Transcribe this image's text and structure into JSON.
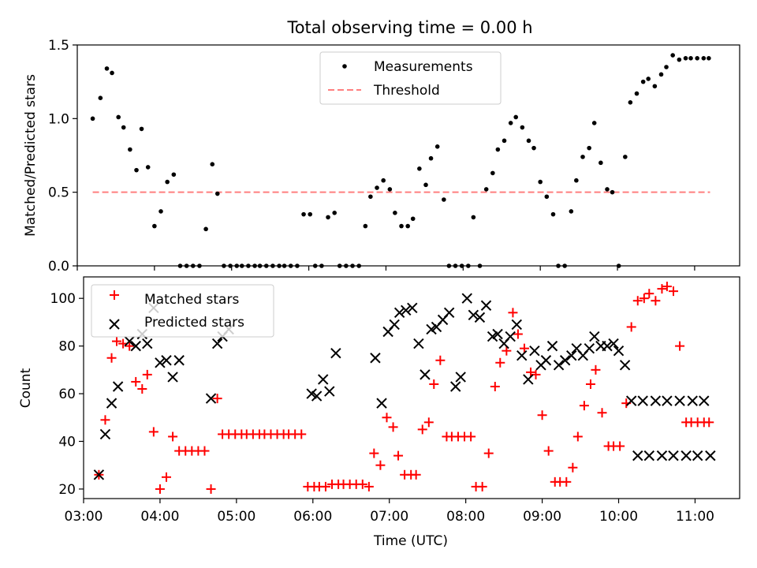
{
  "figure_title": "Total observing time = 0.00 h",
  "chart_data": [
    {
      "type": "scatter",
      "ylabel": "Matched/Predicted stars",
      "xlabel": "",
      "xlim": [
        "03:00",
        "11:35"
      ],
      "ylim": [
        0,
        1.5
      ],
      "yticks": [
        "0.0",
        "0.5",
        "1.0",
        "1.5"
      ],
      "legend_position": "top-center",
      "threshold": 0.5,
      "threshold_range": [
        "03:12",
        "11:12"
      ],
      "series": [
        {
          "name": "Measurements",
          "color": "#000000",
          "marker": "dot",
          "x": [
            "03:12",
            "03:18",
            "03:23",
            "03:27",
            "03:32",
            "03:36",
            "03:41",
            "03:46",
            "03:50",
            "03:55",
            "04:00",
            "04:05",
            "04:10",
            "04:15",
            "04:20",
            "04:25",
            "04:30",
            "04:35",
            "04:40",
            "04:45",
            "04:49",
            "04:54",
            "04:59",
            "05:04",
            "05:08",
            "05:13",
            "05:18",
            "05:22",
            "05:27",
            "05:32",
            "05:37",
            "05:41",
            "05:46",
            "05:51",
            "05:56",
            "06:01",
            "06:05",
            "06:10",
            "06:15",
            "06:20",
            "06:24",
            "06:29",
            "06:34",
            "06:39",
            "06:44",
            "06:48",
            "06:53",
            "06:58",
            "07:03",
            "07:07",
            "07:12",
            "07:17",
            "07:21",
            "07:26",
            "07:31",
            "07:35",
            "07:40",
            "07:45",
            "07:49",
            "07:54",
            "07:59",
            "08:04",
            "08:08",
            "08:13",
            "08:18",
            "08:23",
            "08:27",
            "08:32",
            "08:37",
            "08:41",
            "08:46",
            "08:51",
            "08:55",
            "09:00",
            "09:05",
            "09:10",
            "09:14",
            "09:19",
            "09:24",
            "09:28",
            "09:33",
            "09:38",
            "09:42",
            "09:47",
            "09:52",
            "09:56",
            "10:01",
            "10:06",
            "10:10",
            "10:15",
            "10:20",
            "10:24",
            "10:29",
            "10:34",
            "10:38",
            "10:43",
            "10:48",
            "10:53",
            "10:57",
            "11:02",
            "11:07",
            "11:11"
          ],
          "y": [
            1.0,
            1.14,
            1.34,
            1.31,
            1.01,
            0.94,
            0.79,
            0.65,
            0.93,
            0.67,
            0.27,
            0.37,
            0.57,
            0.62,
            0.0,
            0.0,
            0.0,
            0.0,
            0.25,
            0.69,
            0.49,
            0.0,
            0.0,
            0.0,
            0.0,
            0.0,
            0.0,
            0.0,
            0.0,
            0.0,
            0.0,
            0.0,
            0.0,
            0.0,
            0.35,
            0.35,
            0.0,
            0.0,
            0.33,
            0.36,
            0.0,
            0.0,
            0.0,
            0.0,
            0.27,
            0.47,
            0.53,
            0.58,
            0.52,
            0.36,
            0.27,
            0.27,
            0.32,
            0.66,
            0.55,
            0.73,
            0.81,
            0.45,
            0.0,
            0.0,
            0.0,
            0.0,
            0.33,
            0.0,
            0.52,
            0.63,
            0.79,
            0.85,
            0.97,
            1.01,
            0.94,
            0.85,
            0.8,
            0.57,
            0.47,
            0.35,
            0.0,
            0.0,
            0.37,
            0.58,
            0.74,
            0.8,
            0.97,
            0.7,
            0.52,
            0.5,
            0.0,
            0.74,
            1.11,
            1.17,
            1.25,
            1.27,
            1.22,
            1.3,
            1.35,
            1.43,
            1.4,
            1.41,
            1.41,
            1.41,
            1.41,
            1.41
          ]
        },
        {
          "name": "Threshold",
          "color": "#ff7f7f",
          "style": "dashed",
          "x": [
            "03:12",
            "11:12"
          ],
          "y": [
            0.5,
            0.5
          ]
        }
      ]
    },
    {
      "type": "scatter",
      "ylabel": "Count",
      "xlabel": "Time (UTC)",
      "xlim": [
        "03:00",
        "11:35"
      ],
      "ylim": [
        16,
        109
      ],
      "yticks": [
        "20",
        "40",
        "60",
        "80",
        "100"
      ],
      "xticks": [
        "03:00",
        "04:00",
        "05:00",
        "06:00",
        "07:00",
        "08:00",
        "09:00",
        "10:00",
        "11:00"
      ],
      "legend_position": "top-left",
      "series": [
        {
          "name": "Matched stars",
          "color": "#ff0000",
          "marker": "plus",
          "x": [
            "03:12",
            "03:17",
            "03:22",
            "03:26",
            "03:31",
            "03:36",
            "03:41",
            "03:46",
            "03:50",
            "03:55",
            "04:00",
            "04:05",
            "04:10",
            "04:15",
            "04:20",
            "04:25",
            "04:30",
            "04:35",
            "04:40",
            "04:45",
            "04:49",
            "04:54",
            "04:59",
            "05:04",
            "05:08",
            "05:13",
            "05:18",
            "05:22",
            "05:27",
            "05:32",
            "05:37",
            "05:41",
            "05:46",
            "05:51",
            "05:56",
            "06:01",
            "06:05",
            "06:10",
            "06:15",
            "06:20",
            "06:24",
            "06:29",
            "06:34",
            "06:39",
            "06:44",
            "06:48",
            "06:53",
            "06:58",
            "07:03",
            "07:07",
            "07:12",
            "07:17",
            "07:21",
            "07:26",
            "07:31",
            "07:35",
            "07:40",
            "07:45",
            "07:49",
            "07:54",
            "07:59",
            "08:04",
            "08:08",
            "08:13",
            "08:18",
            "08:23",
            "08:27",
            "08:32",
            "08:37",
            "08:41",
            "08:46",
            "08:51",
            "08:55",
            "09:00",
            "09:05",
            "09:10",
            "09:14",
            "09:19",
            "09:24",
            "09:28",
            "09:33",
            "09:38",
            "09:42",
            "09:47",
            "09:52",
            "09:56",
            "10:01",
            "10:06",
            "10:10",
            "10:15",
            "10:20",
            "10:24",
            "10:29",
            "10:34",
            "10:38",
            "10:43",
            "10:48",
            "10:53",
            "10:57",
            "11:02",
            "11:07",
            "11:11"
          ],
          "y": [
            26,
            49,
            75,
            82,
            81,
            80,
            65,
            62,
            68,
            44,
            20,
            25,
            42,
            36,
            36,
            36,
            36,
            36,
            20,
            58,
            43,
            43,
            43,
            43,
            43,
            43,
            43,
            43,
            43,
            43,
            43,
            43,
            43,
            43,
            21,
            21,
            21,
            21,
            22,
            22,
            22,
            22,
            22,
            22,
            21,
            35,
            30,
            50,
            46,
            34,
            26,
            26,
            26,
            45,
            48,
            64,
            74,
            42,
            42,
            42,
            42,
            42,
            21,
            21,
            35,
            63,
            73,
            78,
            94,
            85,
            79,
            69,
            68,
            51,
            36,
            23,
            23,
            23,
            29,
            42,
            55,
            64,
            70,
            52,
            38,
            38,
            38,
            56,
            88,
            99,
            100,
            102,
            99,
            104,
            105,
            103,
            80,
            48,
            48,
            48,
            48,
            48
          ]
        },
        {
          "name": "Predicted stars",
          "color": "#000000",
          "marker": "x",
          "x": [
            "03:12",
            "03:17",
            "03:22",
            "03:27",
            "03:36",
            "03:41",
            "03:46",
            "03:50",
            "03:55",
            "04:00",
            "04:05",
            "04:10",
            "04:15",
            "04:40",
            "04:45",
            "04:49",
            "04:54",
            "05:59",
            "06:03",
            "06:08",
            "06:13",
            "06:18",
            "06:49",
            "06:54",
            "06:59",
            "07:04",
            "07:08",
            "07:13",
            "07:18",
            "07:23",
            "07:28",
            "07:33",
            "07:37",
            "07:42",
            "07:47",
            "07:52",
            "07:56",
            "08:01",
            "08:06",
            "08:11",
            "08:16",
            "08:21",
            "08:25",
            "08:30",
            "08:35",
            "08:40",
            "08:44",
            "08:49",
            "08:54",
            "08:59",
            "09:03",
            "09:08",
            "09:13",
            "09:18",
            "09:23",
            "09:27",
            "09:32",
            "09:37",
            "09:41",
            "09:46",
            "09:51",
            "09:56",
            "10:00",
            "10:05",
            "10:10",
            "10:15",
            "10:19",
            "10:24",
            "10:29",
            "10:34",
            "10:38",
            "10:43",
            "10:48",
            "10:53",
            "10:58",
            "11:02",
            "11:07",
            "11:12"
          ],
          "y": [
            26,
            43,
            56,
            63,
            82,
            80,
            85,
            81,
            96,
            73,
            74,
            67,
            74,
            58,
            81,
            84,
            87,
            60,
            59,
            66,
            61,
            77,
            75,
            56,
            86,
            89,
            94,
            95,
            96,
            81,
            68,
            87,
            88,
            91,
            94,
            63,
            67,
            100,
            93,
            92,
            97,
            84,
            85,
            81,
            84,
            89,
            76,
            66,
            78,
            72,
            74,
            80,
            72,
            74,
            76,
            79,
            76,
            79,
            84,
            80,
            80,
            81,
            78,
            72,
            57,
            34,
            57,
            34,
            57,
            34,
            57,
            34,
            57,
            34,
            57,
            34,
            57,
            34
          ],
          "x_note": ""
        }
      ]
    }
  ]
}
